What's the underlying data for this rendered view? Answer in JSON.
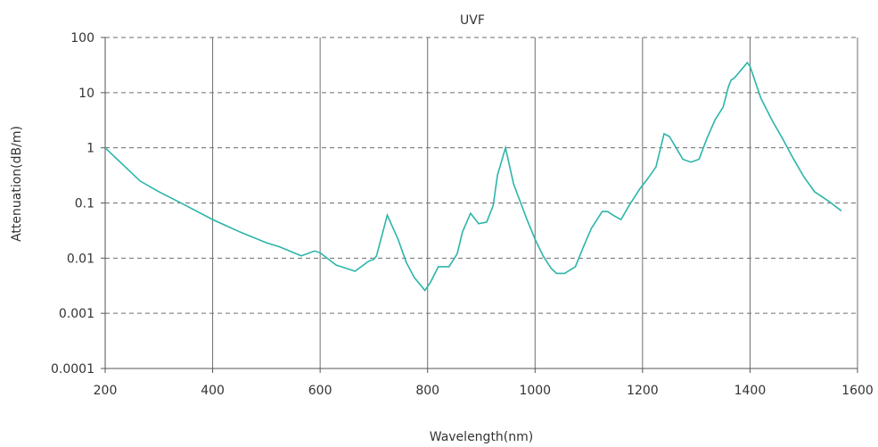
{
  "chart_data": {
    "type": "line",
    "title": "UVF",
    "xlabel": "Wavelength(nm)",
    "ylabel": "Attenuation(dB/m)",
    "xlim": [
      200,
      1600
    ],
    "ylim": [
      0.0001,
      100
    ],
    "y_scale": "log",
    "x_ticks": [
      200,
      400,
      600,
      800,
      1000,
      1200,
      1400,
      1600
    ],
    "y_ticks": [
      {
        "value": 0.0001,
        "label": "0.0001"
      },
      {
        "value": 0.001,
        "label": "0.001"
      },
      {
        "value": 0.01,
        "label": "0.01"
      },
      {
        "value": 0.1,
        "label": "0.1"
      },
      {
        "value": 1,
        "label": "1"
      },
      {
        "value": 10,
        "label": "10"
      },
      {
        "value": 100,
        "label": "100"
      }
    ],
    "vertical_grid": "solid",
    "horizontal_grid": "dashed",
    "line_color": "#2bb5a9",
    "series": [
      {
        "x": [
          200,
          265,
          300,
          350,
          400,
          450,
          500,
          525,
          565,
          590,
          600,
          630,
          665,
          690,
          700,
          705,
          725,
          745,
          760,
          775,
          795,
          805,
          820,
          840,
          855,
          865,
          880,
          895,
          910,
          922,
          930,
          945,
          960,
          985,
          1000,
          1015,
          1030,
          1040,
          1055,
          1075,
          1090,
          1105,
          1125,
          1135,
          1145,
          1160,
          1175,
          1195,
          1210,
          1225,
          1240,
          1250,
          1260,
          1275,
          1290,
          1305,
          1320,
          1335,
          1350,
          1360,
          1365,
          1370,
          1395,
          1400,
          1420,
          1440,
          1460,
          1480,
          1500,
          1520,
          1545,
          1570
        ],
        "y": [
          1.0,
          0.25,
          0.16,
          0.09,
          0.05,
          0.03,
          0.019,
          0.016,
          0.011,
          0.0135,
          0.0125,
          0.0075,
          0.0058,
          0.0088,
          0.0095,
          0.011,
          0.06,
          0.022,
          0.0085,
          0.0045,
          0.0026,
          0.0036,
          0.007,
          0.007,
          0.012,
          0.03,
          0.065,
          0.042,
          0.045,
          0.09,
          0.32,
          1.0,
          0.22,
          0.05,
          0.022,
          0.011,
          0.0065,
          0.0053,
          0.0053,
          0.007,
          0.016,
          0.035,
          0.07,
          0.07,
          0.06,
          0.05,
          0.09,
          0.18,
          0.28,
          0.45,
          1.8,
          1.6,
          1.1,
          0.62,
          0.55,
          0.62,
          1.5,
          3.2,
          5.5,
          13,
          17,
          18,
          35,
          30,
          8,
          3.3,
          1.5,
          0.65,
          0.3,
          0.16,
          0.11,
          0.072
        ]
      }
    ]
  }
}
